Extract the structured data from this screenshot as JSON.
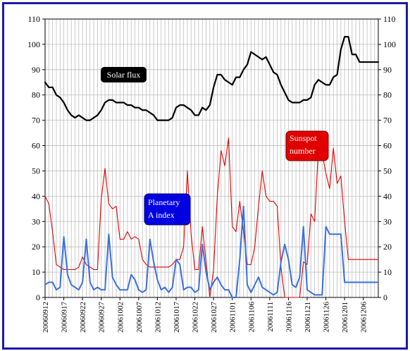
{
  "chart_data": {
    "type": "line",
    "ylim": [
      0,
      110
    ],
    "yticks": [
      0,
      10,
      20,
      30,
      40,
      50,
      60,
      70,
      80,
      90,
      100,
      110
    ],
    "grid": true,
    "x_start": "2006-09-12",
    "x_end": "2006-12-10",
    "xtick_labels": [
      "20060912",
      "20060917",
      "20060922",
      "20060927",
      "20061002",
      "20061007",
      "20061012",
      "20061017",
      "20061022",
      "20061027",
      "20061101",
      "20061106",
      "20061111",
      "20061116",
      "20061121",
      "20061126",
      "20061201",
      "20061206"
    ],
    "labels": {
      "solar_flux": "Solar flux",
      "sunspot_line1": "Sunspot",
      "sunspot_line2": "number",
      "a_index_line1": "Planetary",
      "a_index_line2": "A index"
    },
    "series": [
      {
        "name": "Solar flux",
        "color": "#000000",
        "x": [
          "2006-09-12",
          "2006-09-13",
          "2006-09-14",
          "2006-09-15",
          "2006-09-16",
          "2006-09-17",
          "2006-09-18",
          "2006-09-19",
          "2006-09-20",
          "2006-09-21",
          "2006-09-22",
          "2006-09-23",
          "2006-09-24",
          "2006-09-25",
          "2006-09-26",
          "2006-09-27",
          "2006-09-28",
          "2006-09-29",
          "2006-09-30",
          "2006-10-01",
          "2006-10-02",
          "2006-10-03",
          "2006-10-04",
          "2006-10-05",
          "2006-10-06",
          "2006-10-07",
          "2006-10-08",
          "2006-10-09",
          "2006-10-10",
          "2006-10-11",
          "2006-10-12",
          "2006-10-13",
          "2006-10-14",
          "2006-10-15",
          "2006-10-16",
          "2006-10-17",
          "2006-10-18",
          "2006-10-19",
          "2006-10-20",
          "2006-10-21",
          "2006-10-22",
          "2006-10-23",
          "2006-10-24",
          "2006-10-25",
          "2006-10-26",
          "2006-10-27",
          "2006-10-28",
          "2006-10-29",
          "2006-10-30",
          "2006-10-31",
          "2006-11-01",
          "2006-11-02",
          "2006-11-03",
          "2006-11-04",
          "2006-11-05",
          "2006-11-06",
          "2006-11-07",
          "2006-11-08",
          "2006-11-09",
          "2006-11-10",
          "2006-11-11",
          "2006-11-12",
          "2006-11-13",
          "2006-11-14",
          "2006-11-15",
          "2006-11-16",
          "2006-11-17",
          "2006-11-18",
          "2006-11-19",
          "2006-11-20",
          "2006-11-21",
          "2006-11-22",
          "2006-11-23",
          "2006-11-24",
          "2006-11-25",
          "2006-11-26",
          "2006-11-27",
          "2006-11-28",
          "2006-11-29",
          "2006-11-30",
          "2006-12-01",
          "2006-12-02",
          "2006-12-03",
          "2006-12-04",
          "2006-12-05",
          "2006-12-06",
          "2006-12-07",
          "2006-12-08",
          "2006-12-09",
          "2006-12-10"
        ],
        "values": [
          85,
          83,
          83,
          80,
          79,
          77,
          74,
          72,
          71,
          72,
          71,
          70,
          70,
          71,
          72,
          74,
          77,
          78,
          78,
          77,
          77,
          77,
          76,
          76,
          75,
          75,
          74,
          74,
          73,
          72,
          70,
          70,
          70,
          70,
          71,
          75,
          76,
          76,
          75,
          74,
          72,
          72,
          75,
          74,
          76,
          83,
          88,
          88,
          86,
          85,
          84,
          87,
          87,
          90,
          92,
          97,
          96,
          95,
          94,
          95,
          92,
          89,
          88,
          84,
          81,
          78,
          77,
          77,
          77,
          78,
          78,
          79,
          84,
          86,
          85,
          84,
          84,
          87,
          88,
          98,
          103,
          103,
          96,
          96,
          93,
          93,
          93,
          93,
          93,
          93
        ]
      },
      {
        "name": "Sunspot number",
        "color": "#e00000",
        "x": [
          "2006-09-12",
          "2006-09-13",
          "2006-09-14",
          "2006-09-15",
          "2006-09-16",
          "2006-09-17",
          "2006-09-18",
          "2006-09-19",
          "2006-09-20",
          "2006-09-21",
          "2006-09-22",
          "2006-09-23",
          "2006-09-24",
          "2006-09-25",
          "2006-09-26",
          "2006-09-27",
          "2006-09-28",
          "2006-09-29",
          "2006-09-30",
          "2006-10-01",
          "2006-10-02",
          "2006-10-03",
          "2006-10-04",
          "2006-10-05",
          "2006-10-06",
          "2006-10-07",
          "2006-10-08",
          "2006-10-09",
          "2006-10-10",
          "2006-10-11",
          "2006-10-12",
          "2006-10-13",
          "2006-10-14",
          "2006-10-15",
          "2006-10-16",
          "2006-10-17",
          "2006-10-18",
          "2006-10-19",
          "2006-10-20",
          "2006-10-21",
          "2006-10-22",
          "2006-10-23",
          "2006-10-24",
          "2006-10-25",
          "2006-10-26",
          "2006-10-27",
          "2006-10-28",
          "2006-10-29",
          "2006-10-30",
          "2006-10-31",
          "2006-11-01",
          "2006-11-02",
          "2006-11-03",
          "2006-11-04",
          "2006-11-05",
          "2006-11-06",
          "2006-11-07",
          "2006-11-08",
          "2006-11-09",
          "2006-11-10",
          "2006-11-11",
          "2006-11-12",
          "2006-11-13",
          "2006-11-14",
          "2006-11-15",
          "2006-11-16",
          "2006-11-17",
          "2006-11-18",
          "2006-11-19",
          "2006-11-20",
          "2006-11-21",
          "2006-11-22",
          "2006-11-23",
          "2006-11-24",
          "2006-11-25",
          "2006-11-26",
          "2006-11-27",
          "2006-11-28",
          "2006-11-29",
          "2006-11-30",
          "2006-12-01",
          "2006-12-02",
          "2006-12-03",
          "2006-12-04",
          "2006-12-05",
          "2006-12-06",
          "2006-12-07",
          "2006-12-08",
          "2006-12-09",
          "2006-12-10"
        ],
        "values": [
          40,
          37,
          26,
          13,
          12,
          11,
          11,
          11,
          11,
          12,
          16,
          13,
          12,
          11,
          11,
          39,
          51,
          37,
          35,
          36,
          23,
          23,
          26,
          23,
          24,
          23,
          15,
          13,
          12,
          12,
          12,
          12,
          12,
          12,
          13,
          15,
          15,
          20,
          50,
          25,
          11,
          11,
          28,
          14,
          0,
          11,
          40,
          58,
          52,
          63,
          28,
          26,
          38,
          26,
          13,
          13,
          20,
          36,
          50,
          40,
          38,
          38,
          36,
          12,
          0,
          0,
          0,
          0,
          0,
          14,
          13,
          33,
          30,
          59,
          57,
          49,
          43,
          59,
          45,
          48,
          30,
          15,
          15,
          15,
          15,
          15,
          15,
          15,
          15,
          15
        ]
      },
      {
        "name": "Planetary A index",
        "color": "#3a6fe0",
        "x": [
          "2006-09-12",
          "2006-09-13",
          "2006-09-14",
          "2006-09-15",
          "2006-09-16",
          "2006-09-17",
          "2006-09-18",
          "2006-09-19",
          "2006-09-20",
          "2006-09-21",
          "2006-09-22",
          "2006-09-23",
          "2006-09-24",
          "2006-09-25",
          "2006-09-26",
          "2006-09-27",
          "2006-09-28",
          "2006-09-29",
          "2006-09-30",
          "2006-10-01",
          "2006-10-02",
          "2006-10-03",
          "2006-10-04",
          "2006-10-05",
          "2006-10-06",
          "2006-10-07",
          "2006-10-08",
          "2006-10-09",
          "2006-10-10",
          "2006-10-11",
          "2006-10-12",
          "2006-10-13",
          "2006-10-14",
          "2006-10-15",
          "2006-10-16",
          "2006-10-17",
          "2006-10-18",
          "2006-10-19",
          "2006-10-20",
          "2006-10-21",
          "2006-10-22",
          "2006-10-23",
          "2006-10-24",
          "2006-10-25",
          "2006-10-26",
          "2006-10-27",
          "2006-10-28",
          "2006-10-29",
          "2006-10-30",
          "2006-10-31",
          "2006-11-01",
          "2006-11-02",
          "2006-11-03",
          "2006-11-04",
          "2006-11-05",
          "2006-11-06",
          "2006-11-07",
          "2006-11-08",
          "2006-11-09",
          "2006-11-10",
          "2006-11-11",
          "2006-11-12",
          "2006-11-13",
          "2006-11-14",
          "2006-11-15",
          "2006-11-16",
          "2006-11-17",
          "2006-11-18",
          "2006-11-19",
          "2006-11-20",
          "2006-11-21",
          "2006-11-22",
          "2006-11-23",
          "2006-11-24",
          "2006-11-25",
          "2006-11-26",
          "2006-11-27",
          "2006-11-28",
          "2006-11-29",
          "2006-11-30",
          "2006-12-01",
          "2006-12-02",
          "2006-12-03",
          "2006-12-04",
          "2006-12-05",
          "2006-12-06",
          "2006-12-07",
          "2006-12-08",
          "2006-12-09",
          "2006-12-10"
        ],
        "values": [
          5,
          6,
          6,
          3,
          4,
          24,
          9,
          5,
          4,
          3,
          6,
          23,
          6,
          3,
          4,
          3,
          3,
          25,
          8,
          5,
          3,
          3,
          3,
          9,
          7,
          3,
          2,
          3,
          23,
          14,
          7,
          3,
          4,
          2,
          4,
          15,
          13,
          3,
          4,
          4,
          2,
          3,
          21,
          10,
          3,
          6,
          8,
          5,
          3,
          3,
          0,
          0,
          15,
          36,
          5,
          2,
          5,
          8,
          4,
          3,
          2,
          1,
          2,
          14,
          21,
          15,
          5,
          4,
          8,
          28,
          3,
          2,
          1,
          1,
          1,
          28,
          25,
          25,
          25,
          25,
          6,
          6,
          6,
          6,
          6,
          6,
          6,
          6,
          6,
          6
        ]
      }
    ]
  }
}
